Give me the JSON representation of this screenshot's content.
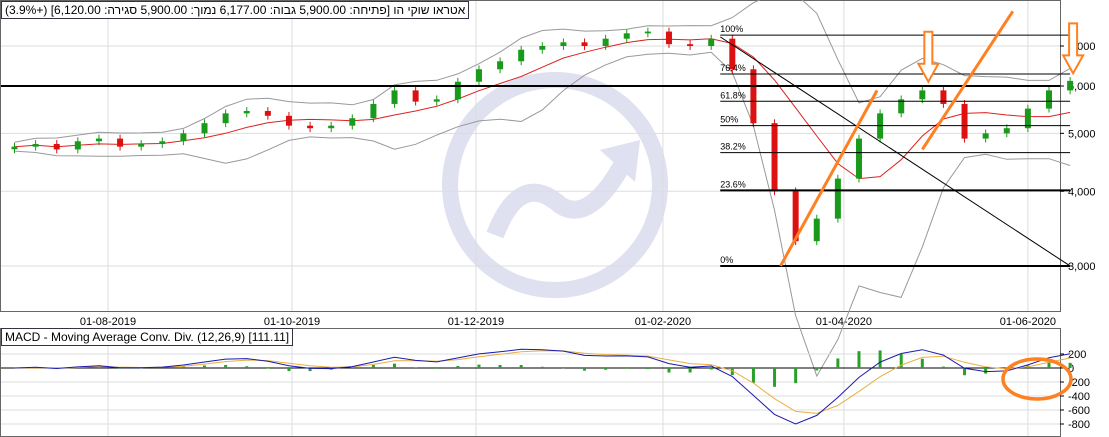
{
  "header": {
    "title": "אטראו שוקי הו [פתיחה: 5,900.00 גבוה: 6,177.00 נמוך: 5,900.00 סגירה: 6,120.00] (+3.9%)"
  },
  "macd_panel": {
    "title": "MACD - Moving Average Conv. Div. (12,26,9) [111.11]"
  },
  "colors": {
    "up": "#1a9a1a",
    "down": "#dd1111",
    "ma": "#dd2222",
    "bands": "#999999",
    "annotation": "#ff8020",
    "macd": "#1a1ab0",
    "signal": "#e8b040",
    "histogram": "#2aa02a"
  },
  "chart_data": [
    {
      "type": "candlestick",
      "scale": "log",
      "ylim": [
        2500,
        8000
      ],
      "yticks": [
        "3,000",
        "4,000",
        "5,000",
        "6,000",
        "7,000"
      ],
      "ytick_values": [
        3000,
        4000,
        5000,
        6000,
        7000
      ],
      "xticks": [
        "01-08-2019",
        "01-10-2019",
        "01-12-2019",
        "01-02-2020",
        "01-04-2020",
        "01-06-2020"
      ],
      "xtick_dates": [
        "2019-08-01",
        "2019-10-01",
        "2019-12-01",
        "2020-02-01",
        "2020-04-01",
        "2020-06-01"
      ],
      "dates": [
        "2019-07-01",
        "2020-06-15"
      ],
      "weekly_close": [
        4750,
        4800,
        4700,
        4850,
        4900,
        4750,
        4800,
        4850,
        5000,
        5200,
        5400,
        5450,
        5350,
        5150,
        5100,
        5150,
        5300,
        5600,
        5900,
        5650,
        5700,
        6100,
        6400,
        6600,
        6900,
        7000,
        7100,
        7000,
        7200,
        7350,
        7400,
        7050,
        7000,
        7200,
        6400,
        5200,
        4000,
        3300,
        3600,
        4200,
        4900,
        5400,
        5700,
        5900,
        5600,
        4900,
        5000,
        5100,
        5500,
        5900,
        6120
      ],
      "horizontal_line": 6000,
      "fibonacci": {
        "high": 7300,
        "low": 3000,
        "from": "2020-02-20",
        "to": "2020-06-15",
        "levels": [
          {
            "pct": 1,
            "label": "100%"
          },
          {
            "pct": 0.764,
            "label": "76.4%"
          },
          {
            "pct": 0.618,
            "label": "61.8%"
          },
          {
            "pct": 0.5,
            "label": "50%"
          },
          {
            "pct": 0.382,
            "label": "38.2%"
          },
          {
            "pct": 0.236,
            "label": "23.6%"
          },
          {
            "pct": 0,
            "label": "0%"
          }
        ]
      },
      "trendline": {
        "from": [
          "2020-02-20",
          7250
        ],
        "to": [
          "2020-06-15",
          3000
        ]
      },
      "orange_lines": [
        {
          "from": [
            "2020-03-11",
            3000
          ],
          "to": [
            "2020-04-12",
            5900
          ]
        },
        {
          "from": [
            "2020-04-27",
            4700
          ],
          "to": [
            "2020-05-27",
            8000
          ]
        }
      ],
      "orange_arrows": [
        {
          "date": "2020-04-29",
          "price": 6100
        },
        {
          "date": "2020-06-16",
          "price": 6300
        }
      ]
    },
    {
      "type": "macd",
      "title": "MACD - Moving Average Conv. Div. (12,26,9) [111.11]",
      "ylim": [
        -900,
        300
      ],
      "yticks": [
        "200",
        "0",
        "-200",
        "-400",
        "-600",
        "-800"
      ],
      "ytick_values": [
        200,
        0,
        -200,
        -400,
        -600,
        -800
      ],
      "last_value": 111.11
    }
  ]
}
